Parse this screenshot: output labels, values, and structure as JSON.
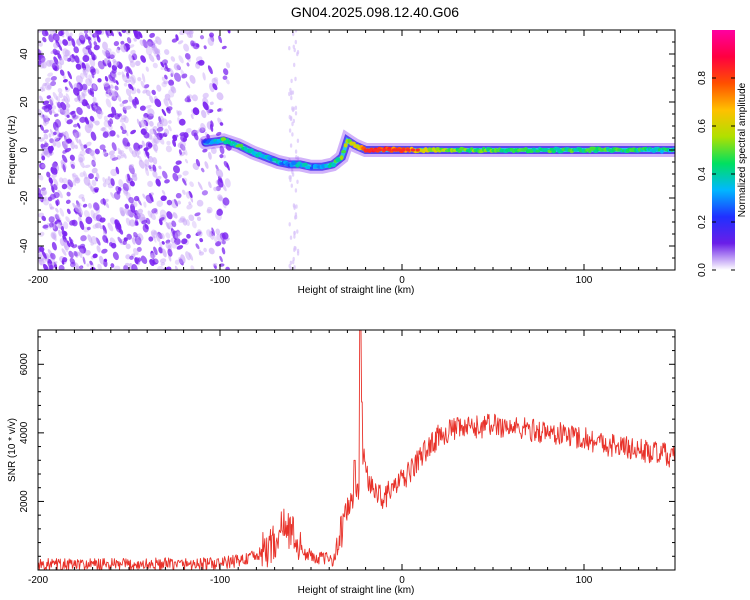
{
  "figure": {
    "title": "GN04.2025.098.12.40.G06"
  },
  "colors": {
    "snr_line": "#e8322a",
    "scatter_purple": "#7a22f0",
    "track_cyan": "#22d4e0",
    "track_green": "#33e060",
    "track_red": "#ff2a2a",
    "background": "#ffffff"
  },
  "chart_data": [
    {
      "type": "heatmap",
      "title": "GN04.2025.098.12.40.G06",
      "xlabel": "Height of straight line (km)",
      "ylabel": "Frequency (Hz)",
      "xlim": [
        -200,
        150
      ],
      "ylim": [
        -50,
        50
      ],
      "x_ticks": [
        "-200",
        "-100",
        "0",
        "100"
      ],
      "y_ticks": [
        "-40",
        "-20",
        "0",
        "20",
        "40"
      ],
      "colorbar": {
        "label": "Normalized spectral amplitude",
        "range": [
          0,
          1
        ],
        "ticks": [
          "0.0",
          "0.2",
          "0.4",
          "0.6",
          "0.8"
        ],
        "colormap": [
          "#ffffff",
          "#6a1ee8",
          "#2030ff",
          "#00b8ff",
          "#00e060",
          "#b0e000",
          "#ffc000",
          "#ff5000",
          "#ff0040",
          "#ff00a0"
        ]
      },
      "track": {
        "x": [
          -108,
          -98,
          -90,
          -82,
          -75,
          -68,
          -62,
          -56,
          -50,
          -44,
          -38,
          -33,
          -30,
          -26,
          -20,
          -10,
          0,
          10,
          30,
          60,
          100,
          150
        ],
        "y": [
          3,
          4,
          2,
          -1,
          -3,
          -5,
          -6,
          -6,
          -7,
          -7,
          -6,
          -3,
          4,
          2,
          0,
          0,
          0,
          0,
          0,
          0,
          0,
          0
        ],
        "amplitude": [
          0.25,
          0.45,
          0.45,
          0.4,
          0.35,
          0.35,
          0.3,
          0.35,
          0.3,
          0.35,
          0.4,
          0.5,
          0.55,
          0.6,
          0.8,
          0.8,
          0.75,
          0.6,
          0.5,
          0.45,
          0.45,
          0.4
        ]
      },
      "noise_region": {
        "x": [
          -200,
          -95
        ],
        "y": [
          -50,
          50
        ],
        "amplitude": 0.1
      }
    },
    {
      "type": "line",
      "xlabel": "Height of straight line (km)",
      "ylabel": "SNR (10 * v/v)",
      "xlim": [
        -200,
        150
      ],
      "ylim": [
        0,
        7000
      ],
      "x_ticks": [
        "-200",
        "-100",
        "0",
        "100"
      ],
      "y_ticks": [
        "2000",
        "4000",
        "6000"
      ],
      "series": [
        {
          "envelope_x": [
            -200,
            -150,
            -100,
            -88,
            -80,
            -70,
            -65,
            -60,
            -55,
            -45,
            -38,
            -35,
            -32,
            -28,
            -24,
            -21,
            -18,
            -14,
            -10,
            -5,
            0,
            5,
            10,
            15,
            20,
            25,
            30,
            40,
            50,
            60,
            70,
            80,
            90,
            100,
            110,
            120,
            130,
            140,
            150
          ],
          "envelope_y": [
            150,
            150,
            180,
            300,
            400,
            800,
            1300,
            1100,
            500,
            350,
            300,
            700,
            1500,
            2000,
            2300,
            3500,
            2400,
            2300,
            2100,
            2400,
            2600,
            2900,
            3300,
            3600,
            3900,
            4050,
            4100,
            4150,
            4250,
            4150,
            4100,
            4000,
            3950,
            3850,
            3700,
            3600,
            3500,
            3400,
            3300
          ],
          "noise_amplitude": 350,
          "spikes": [
            {
              "x": -23,
              "y": 7000
            },
            {
              "x": -22,
              "y": 4900
            },
            {
              "x": -26,
              "y": 3200
            }
          ]
        }
      ]
    }
  ]
}
